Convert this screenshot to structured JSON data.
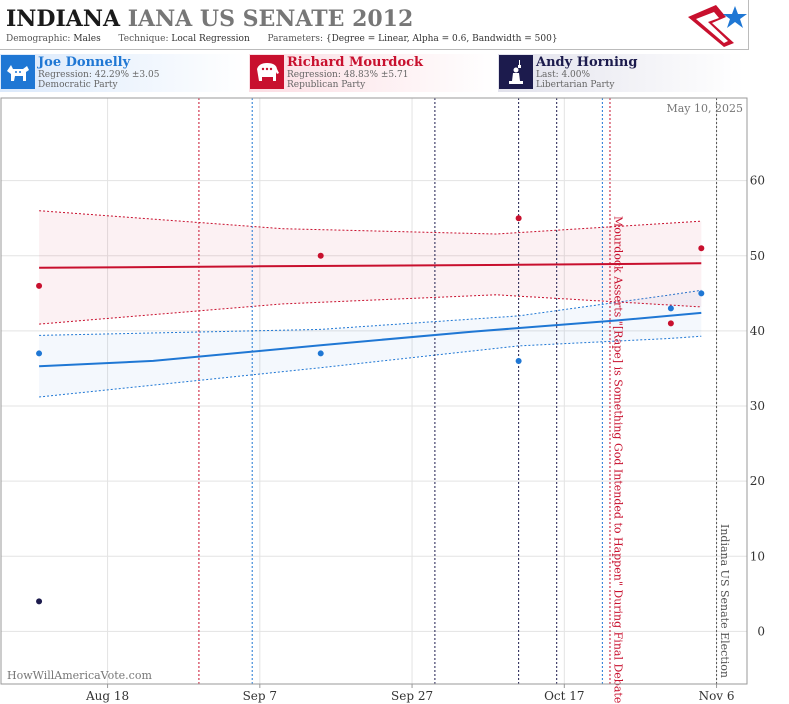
{
  "header": {
    "title_state": "INDIANA",
    "title_race": "IANA US SENATE 2012",
    "demographic_label": "Demographic:",
    "demographic_value": "Males",
    "technique_label": "Technique:",
    "technique_value": "Local Regression",
    "parameters_label": "Parameters:",
    "parameters_value": "{Degree = Linear, Alpha = 0.6, Bandwidth = 500}"
  },
  "candidates": [
    {
      "name": "Joe Donnelly",
      "stat": "Regression: 42.29% ±3.05",
      "party": "Democratic Party",
      "icon": "donkey-icon",
      "color": "#1f77d4"
    },
    {
      "name": "Richard Mourdock",
      "stat": "Regression: 48.83% ±5.71",
      "party": "Republican Party",
      "icon": "elephant-icon",
      "color": "#c8102e"
    },
    {
      "name": "Andy Horning",
      "stat": "Last: 4.00%",
      "party": "Libertarian Party",
      "icon": "liberty-icon",
      "color": "#1c1b4d"
    }
  ],
  "chart_data": {
    "type": "scatter",
    "date_stamp": "May 10, 2025",
    "watermark": "HowWillAmericaVote.com",
    "x_domain": [
      "2012-08-04",
      "2012-11-10"
    ],
    "x_ticks": [
      {
        "date": "2012-08-18",
        "label": "Aug 18"
      },
      {
        "date": "2012-09-07",
        "label": "Sep 7"
      },
      {
        "date": "2012-09-27",
        "label": "Sep 27"
      },
      {
        "date": "2012-10-17",
        "label": "Oct 17"
      },
      {
        "date": "2012-11-06",
        "label": "Nov 6"
      }
    ],
    "ylim": [
      -7,
      71
    ],
    "y_ticks": [
      0,
      10,
      20,
      30,
      40,
      50,
      60
    ],
    "grid": true,
    "series": [
      {
        "name": "Joe Donnelly",
        "color": "#1f77d4",
        "points": [
          {
            "x": "2012-08-09",
            "y": 37
          },
          {
            "x": "2012-09-15",
            "y": 37
          },
          {
            "x": "2012-10-11",
            "y": 36
          },
          {
            "x": "2012-10-31",
            "y": 43
          },
          {
            "x": "2012-11-04",
            "y": 45
          }
        ],
        "fit": [
          {
            "x": "2012-08-09",
            "y": 35.3
          },
          {
            "x": "2012-08-24",
            "y": 36.0
          },
          {
            "x": "2012-09-15",
            "y": 38.1
          },
          {
            "x": "2012-10-05",
            "y": 39.9
          },
          {
            "x": "2012-10-24",
            "y": 41.4
          },
          {
            "x": "2012-11-04",
            "y": 42.4
          }
        ],
        "upper": [
          {
            "x": "2012-08-09",
            "y": 39.4
          },
          {
            "x": "2012-09-15",
            "y": 40.2
          },
          {
            "x": "2012-10-11",
            "y": 42.0
          },
          {
            "x": "2012-10-31",
            "y": 44.8
          },
          {
            "x": "2012-11-04",
            "y": 45.4
          }
        ],
        "lower": [
          {
            "x": "2012-08-09",
            "y": 31.2
          },
          {
            "x": "2012-09-15",
            "y": 35.1
          },
          {
            "x": "2012-10-11",
            "y": 38.0
          },
          {
            "x": "2012-10-31",
            "y": 39.0
          },
          {
            "x": "2012-11-04",
            "y": 39.3
          }
        ]
      },
      {
        "name": "Richard Mourdock",
        "color": "#c8102e",
        "points": [
          {
            "x": "2012-08-09",
            "y": 46
          },
          {
            "x": "2012-09-15",
            "y": 50
          },
          {
            "x": "2012-10-11",
            "y": 55
          },
          {
            "x": "2012-10-31",
            "y": 41
          },
          {
            "x": "2012-11-04",
            "y": 51
          }
        ],
        "fit": [
          {
            "x": "2012-08-09",
            "y": 48.4
          },
          {
            "x": "2012-09-07",
            "y": 48.6
          },
          {
            "x": "2012-10-11",
            "y": 48.8
          },
          {
            "x": "2012-11-04",
            "y": 49.0
          }
        ],
        "upper": [
          {
            "x": "2012-08-09",
            "y": 56.0
          },
          {
            "x": "2012-09-10",
            "y": 53.6
          },
          {
            "x": "2012-10-08",
            "y": 52.9
          },
          {
            "x": "2012-11-04",
            "y": 54.6
          }
        ],
        "lower": [
          {
            "x": "2012-08-09",
            "y": 40.9
          },
          {
            "x": "2012-09-10",
            "y": 43.6
          },
          {
            "x": "2012-10-08",
            "y": 44.8
          },
          {
            "x": "2012-11-04",
            "y": 43.2
          }
        ]
      },
      {
        "name": "Andy Horning",
        "color": "#1c1b4d",
        "points": [
          {
            "x": "2012-08-09",
            "y": 4
          }
        ]
      }
    ],
    "event_lines": [
      {
        "x": "2012-08-30",
        "color": "#c8102e"
      },
      {
        "x": "2012-09-06",
        "color": "#1f77d4"
      },
      {
        "x": "2012-09-30",
        "color": "#1c1b4d"
      },
      {
        "x": "2012-10-11",
        "color": "#1c1b4d"
      },
      {
        "x": "2012-10-16",
        "color": "#1c1b4d"
      },
      {
        "x": "2012-10-22",
        "color": "#1f77d4"
      },
      {
        "x": "2012-10-23",
        "color": "#c8102e"
      },
      {
        "x": "2012-11-06",
        "color": "#555555"
      }
    ],
    "annotations": [
      {
        "x": "2012-10-24",
        "text": "Mourdock Asserts \"[Rape] is Something God Intended to Happen\" During Final Debate",
        "color": "#c8102e"
      },
      {
        "x": "2012-11-07",
        "text": "Indiana US Senate Election",
        "color": "#555555"
      }
    ]
  }
}
